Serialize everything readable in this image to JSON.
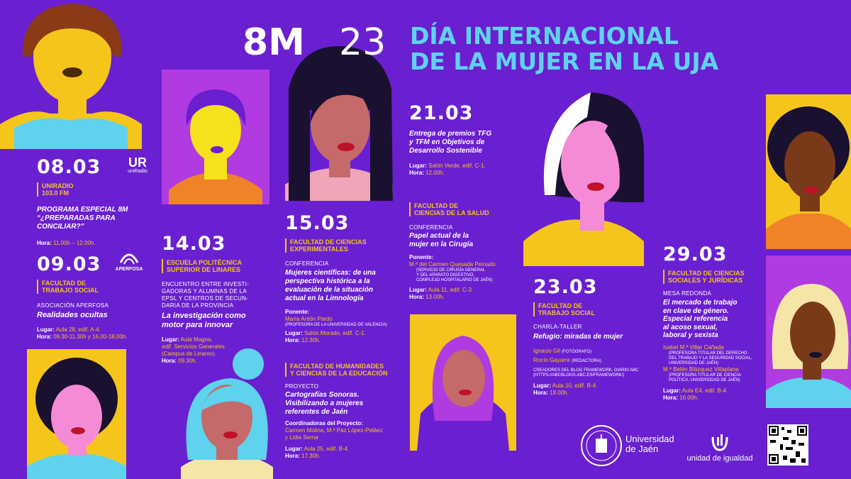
{
  "colors": {
    "background": "#6a1fd0",
    "accent_yellow": "#f5c51c",
    "accent_cyan": "#5fd2ee",
    "pink": "#f58bd6",
    "violet": "#b03be0"
  },
  "header": {
    "big": "8M",
    "year": "23",
    "line1": "DÍA INTERNACIONAL",
    "line2": "DE LA MUJER EN LA UJA"
  },
  "ev1": {
    "date": "08.03",
    "venue1": "UNIRADIO",
    "venue2": "103.0 FM",
    "title1": "PROGRAMA ESPECIAL 8M",
    "title2": "“¿PREPARADAS PARA",
    "title3": "CONCILIAR?”",
    "hora_label": "Hora:",
    "hora": "11.00h – 12.00h.",
    "logo_text": "UR",
    "logo_sub": "uniRadio"
  },
  "ev2": {
    "date": "09.03",
    "venue1": "FACULTAD DE",
    "venue2": "TRABAJO SOCIAL",
    "type": "ASOCIACIÓN APERFOSA",
    "title": "Realidades ocultas",
    "lugar_label": "Lugar:",
    "lugar": "Aula 28, edif. A-4.",
    "hora_label": "Hora:",
    "hora": "09.30-11.30h y 16.00-18.00h.",
    "logo_text": "APERFOSA"
  },
  "ev3": {
    "date": "14.03",
    "venue1": "ESCUELA POLITÉCNICA",
    "venue2": "SUPERIOR DE LINARES",
    "type1": "ENCUENTRO ENTRE INVESTI-",
    "type2": "GADORAS Y ALUMNAS DE LA",
    "type3": "EPSL Y CENTROS DE SECUN-",
    "type4": "DARIA DE LA PROVINCIA",
    "title1": "La investigación como",
    "title2": "motor para innovar",
    "lugar_label": "Lugar:",
    "lugar1": "Aula Magna,",
    "lugar2": "edif. Servicios Generales",
    "lugar3": "(Campus de Linares).",
    "hora_label": "Hora:",
    "hora": "09.30h."
  },
  "ev4": {
    "date": "15.03",
    "venue1": "FACULTAD DE CIENCIAS",
    "venue2": "EXPERIMENTALES",
    "type": "CONFERENCIA",
    "title1": "Mujeres científicas: de una",
    "title2": "perspectiva histórica a la",
    "title3": "evaluación de la situación",
    "title4": "actual en la Limnología",
    "ponente_label": "Ponente:",
    "ponente": "María Antón Pardo",
    "ponente_sub": "(PROFESORA DE LA UNIVERSIDAD DE VALENCIA)",
    "lugar_label": "Lugar:",
    "lugar": "Salón Morado, edif. C-1.",
    "hora_label": "Hora:",
    "hora": "12.30h."
  },
  "ev5": {
    "venue1": "FACULTAD DE HUMANIDADES",
    "venue2": "Y CIENCIAS DE LA EDUCACIÓN",
    "type": "PROYECTO",
    "title1": "Cartografías Sonoras.",
    "title2": "Visibilizando a mujeres",
    "title3": "referentes de Jaén",
    "coord_label": "Coordinadoras del Proyecto:",
    "coord1": "Carmen Molina, M.ª Paz López-Peláez",
    "coord2": "y Lidia Serna",
    "lugar_label": "Lugar:",
    "lugar": "Aula 25, edif. B-4.",
    "hora_label": "Hora:",
    "hora": "17.30h."
  },
  "ev6": {
    "date": "21.03",
    "title1": "Entrega de premios TFG",
    "title2": "y TFM en Objetivos de",
    "title3": "Desarrollo Sostenible",
    "lugar_label": "Lugar:",
    "lugar": "Salón Verde, edif. C-1.",
    "hora_label": "Hora:",
    "hora": "12.00h."
  },
  "ev7": {
    "venue1": "FACULTAD DE",
    "venue2": "CIENCIAS DE LA SALUD",
    "type": "CONFERENCIA",
    "title1": "Papel actual de la",
    "title2": "mujer en la Cirugía",
    "ponente_label": "Ponente:",
    "ponente": "M.ª del Carmen Quesada Peinado",
    "sub1": "(SERVICIO DE CIRUGÍA GENERAL",
    "sub2": "Y DEL APARATO DIGESTIVO.",
    "sub3": "COMPLEJO HOSPITALARIO DE JAÉN)",
    "lugar_label": "Lugar:",
    "lugar": "Aula 11, edif. C-3.",
    "hora_label": "Hora:",
    "hora": "13.00h."
  },
  "ev8": {
    "date": "23.03",
    "venue1": "FACULTAD DE",
    "venue2": "TRABAJO SOCIAL",
    "type": "CHARLA-TALLER",
    "title": "Refugio: miradas de mujer",
    "p1": "Ignacio Gil",
    "p1_role": "(FOTÓGRAFO)",
    "p2": "Rocío Gayarre",
    "p2_role": "(REDACTORA)",
    "creators1": "CREADORES DEL BLOG FRAMEWORK, DIARIO ABC",
    "creators2": "(HTTPS://ABCBLOGS.ABC.ES/FRAMEWORK/)",
    "lugar_label": "Lugar:",
    "lugar": "Aula 10, edif. B-4.",
    "hora_label": "Hora:",
    "hora": "18.00h."
  },
  "ev9": {
    "date": "29.03",
    "venue1": "FACULTAD DE CIENCIAS",
    "venue2": "SOCIALES Y JURÍDICAS",
    "type": "MESA REDONDA",
    "title1": "El mercado de trabajo",
    "title2": "en clave de género.",
    "title3": "Especial referencia",
    "title4": "al acoso sexual,",
    "title5": "laboral y sexista",
    "s1": "Isabel M.ª Villar Cañada",
    "s1a": "(PROFESORA TITULAR DEL DERECHO",
    "s1b": "DEL TRABAJO Y LA SEGURIDAD SOCIAL,",
    "s1c": "UNIVERSIDAD DE JAÉN)",
    "s2": "M.ª Belén Blázquez Villaplana",
    "s2a": "(PROFESORA TITULAR DE CIENCIA",
    "s2b": "POLÍTICA, UNIVERSIDAD DE JAÉN)",
    "lugar_label": "Lugar:",
    "lugar": "Aula E4, edif. B-4.",
    "hora_label": "Hora:",
    "hora": "16.00h."
  },
  "footer": {
    "uni1": "Universidad",
    "uni2": "de Jaén",
    "igualdad": "unidad de igualdad"
  }
}
